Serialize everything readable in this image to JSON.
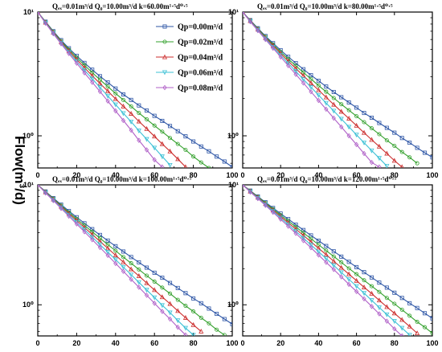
{
  "y_axis_label": "Flow(m³/d)",
  "chart_data": [
    {
      "type": "line",
      "title": "Qₑₓ=0.01m³/d Q₀=10.00m³/d k=60.00m¹·⁵d⁰·⁵",
      "xlim": [
        0,
        100
      ],
      "ylim": [
        0.55,
        10
      ],
      "yscale": "log",
      "x_ticks": [
        "0",
        "20",
        "40",
        "60",
        "80",
        "100"
      ],
      "y_ticks": [
        "10⁰",
        "10¹"
      ],
      "x_step": 4,
      "legend": "top-right",
      "series": [
        {
          "name": "Qp=0.00m³/d",
          "color": "#2e56a6",
          "marker": "square",
          "values": [
            10.0,
            8.36,
            7.0,
            5.93,
            5.1,
            4.43,
            3.88,
            3.42,
            3.03,
            2.7,
            2.41,
            2.16,
            1.95,
            1.76,
            1.6,
            1.45,
            1.32,
            1.2,
            1.09,
            0.99,
            0.9,
            0.82,
            0.75,
            0.68,
            0.62,
            0.56
          ]
        },
        {
          "name": "Qp=0.02m³/d",
          "color": "#33a02c",
          "marker": "circle",
          "values": [
            10.0,
            8.3,
            6.92,
            5.83,
            4.98,
            4.29,
            3.72,
            3.24,
            2.84,
            2.5,
            2.2,
            1.95,
            1.73,
            1.53,
            1.36,
            1.21,
            1.08,
            0.96,
            0.86,
            0.77,
            0.68,
            0.61,
            0.55
          ]
        },
        {
          "name": "Qp=0.04m³/d",
          "color": "#cc2e2e",
          "marker": "triangle",
          "values": [
            10.0,
            8.24,
            6.84,
            5.74,
            4.86,
            4.14,
            3.55,
            3.06,
            2.65,
            2.3,
            1.99,
            1.73,
            1.51,
            1.31,
            1.14,
            0.99,
            0.86,
            0.75,
            0.65,
            0.56
          ]
        },
        {
          "name": "Qp=0.06m³/d",
          "color": "#3ec1d6",
          "marker": "triangle-down",
          "values": [
            10.0,
            8.18,
            6.76,
            5.64,
            4.74,
            4.0,
            3.39,
            2.89,
            2.46,
            2.1,
            1.79,
            1.52,
            1.3,
            1.1,
            0.94,
            0.8,
            0.68,
            0.58
          ]
        },
        {
          "name": "Qp=0.08m³/d",
          "color": "#b061c8",
          "marker": "diamond",
          "values": [
            10.0,
            8.12,
            6.68,
            5.54,
            4.62,
            3.86,
            3.23,
            2.71,
            2.28,
            1.91,
            1.59,
            1.33,
            1.11,
            0.92,
            0.77,
            0.64,
            0.56
          ]
        }
      ]
    },
    {
      "type": "line",
      "title": "Qₑₓ=0.01m³/d Q₀=10.00m³/d k=80.00m¹·⁵d⁰·⁵",
      "xlim": [
        0,
        100
      ],
      "ylim": [
        0.55,
        10
      ],
      "yscale": "log",
      "x_ticks": [
        "0",
        "20",
        "40",
        "60",
        "80",
        "100"
      ],
      "y_ticks": [
        "10⁰",
        "10¹"
      ],
      "x_step": 4,
      "series": [
        {
          "name": "Qp=0.00m³/d",
          "color": "#2e56a6",
          "marker": "square",
          "values": [
            10.0,
            8.6,
            7.4,
            6.4,
            5.6,
            4.92,
            4.35,
            3.87,
            3.45,
            3.09,
            2.78,
            2.5,
            2.26,
            2.05,
            1.86,
            1.69,
            1.53,
            1.4,
            1.27,
            1.16,
            1.06,
            0.96,
            0.88,
            0.8,
            0.73,
            0.67
          ]
        },
        {
          "name": "Qp=0.02m³/d",
          "color": "#33a02c",
          "marker": "circle",
          "values": [
            10.0,
            8.54,
            7.32,
            6.3,
            5.47,
            4.77,
            4.18,
            3.68,
            3.25,
            2.88,
            2.55,
            2.27,
            2.02,
            1.8,
            1.61,
            1.44,
            1.29,
            1.15,
            1.03,
            0.92,
            0.83,
            0.74,
            0.67,
            0.6
          ]
        },
        {
          "name": "Qp=0.04m³/d",
          "color": "#cc2e2e",
          "marker": "triangle",
          "values": [
            10.0,
            8.48,
            7.24,
            6.2,
            5.35,
            4.63,
            4.02,
            3.5,
            3.06,
            2.67,
            2.34,
            2.05,
            1.79,
            1.57,
            1.38,
            1.21,
            1.06,
            0.93,
            0.82,
            0.72,
            0.63,
            0.56
          ]
        },
        {
          "name": "Qp=0.06m³/d",
          "color": "#3ec1d6",
          "marker": "triangle-down",
          "values": [
            10.0,
            8.42,
            7.16,
            6.1,
            5.22,
            4.48,
            3.85,
            3.32,
            2.86,
            2.47,
            2.13,
            1.84,
            1.59,
            1.37,
            1.18,
            1.02,
            0.88,
            0.76,
            0.66,
            0.57
          ]
        },
        {
          "name": "Qp=0.08m³/d",
          "color": "#b061c8",
          "marker": "diamond",
          "values": [
            10.0,
            8.36,
            7.08,
            6.0,
            5.1,
            4.34,
            3.69,
            3.14,
            2.67,
            2.27,
            1.93,
            1.64,
            1.39,
            1.18,
            1.0,
            0.85,
            0.72,
            0.61,
            0.56
          ]
        }
      ]
    },
    {
      "type": "line",
      "title": "Qₑₓ=0.01m³/d Q₀=10.00m³/d k=100.00m¹·⁵d⁰·⁵",
      "xlim": [
        0,
        100
      ],
      "ylim": [
        0.55,
        10
      ],
      "yscale": "log",
      "x_ticks": [
        "0",
        "20",
        "40",
        "60",
        "80",
        "100"
      ],
      "y_ticks": [
        "10⁰",
        "10¹"
      ],
      "x_step": 4,
      "series": [
        {
          "name": "Qp=0.00m³/d",
          "color": "#2e56a6",
          "marker": "square",
          "values": [
            10.0,
            8.8,
            7.75,
            6.84,
            6.05,
            5.37,
            4.78,
            4.27,
            3.82,
            3.43,
            3.08,
            2.78,
            2.5,
            2.26,
            2.04,
            1.85,
            1.68,
            1.52,
            1.38,
            1.25,
            1.13,
            1.03,
            0.93,
            0.84,
            0.76,
            0.69
          ]
        },
        {
          "name": "Qp=0.02m³/d",
          "color": "#33a02c",
          "marker": "circle",
          "values": [
            10.0,
            8.74,
            7.66,
            6.72,
            5.9,
            5.2,
            4.59,
            4.06,
            3.59,
            3.18,
            2.82,
            2.5,
            2.22,
            1.97,
            1.75,
            1.56,
            1.39,
            1.24,
            1.1,
            0.98,
            0.88,
            0.78,
            0.7,
            0.62,
            0.56
          ]
        },
        {
          "name": "Qp=0.04m³/d",
          "color": "#cc2e2e",
          "marker": "triangle",
          "values": [
            10.0,
            8.68,
            7.57,
            6.6,
            5.76,
            5.04,
            4.41,
            3.86,
            3.38,
            2.96,
            2.59,
            2.27,
            1.98,
            1.74,
            1.52,
            1.33,
            1.16,
            1.02,
            0.89,
            0.78,
            0.68,
            0.6
          ]
        },
        {
          "name": "Qp=0.06m³/d",
          "color": "#3ec1d6",
          "marker": "triangle-down",
          "values": [
            10.0,
            8.62,
            7.48,
            6.48,
            5.62,
            4.88,
            4.23,
            3.67,
            3.18,
            2.75,
            2.38,
            2.06,
            1.78,
            1.54,
            1.33,
            1.15,
            0.99,
            0.86,
            0.74,
            0.64,
            0.56
          ]
        },
        {
          "name": "Qp=0.08m³/d",
          "color": "#b061c8",
          "marker": "diamond",
          "values": [
            10.0,
            8.56,
            7.39,
            6.36,
            5.48,
            4.72,
            4.06,
            3.49,
            3.0,
            2.58,
            2.21,
            1.9,
            1.63,
            1.4,
            1.2,
            1.03,
            0.88,
            0.76,
            0.65,
            0.56
          ]
        }
      ]
    },
    {
      "type": "line",
      "title": "Qₑₓ=0.01m³/d Q₀=10.00m³/d k=120.00m¹·⁵d⁰·⁵",
      "xlim": [
        0,
        100
      ],
      "ylim": [
        0.55,
        10
      ],
      "yscale": "log",
      "x_ticks": [
        "0",
        "20",
        "40",
        "60",
        "80",
        "100"
      ],
      "y_ticks": [
        "10⁰",
        "10¹"
      ],
      "x_step": 4,
      "series": [
        {
          "name": "Qp=0.00m³/d",
          "color": "#2e56a6",
          "marker": "square",
          "values": [
            10.0,
            8.95,
            8.0,
            7.16,
            6.41,
            5.76,
            5.18,
            4.66,
            4.2,
            3.79,
            3.42,
            3.09,
            2.79,
            2.52,
            2.28,
            2.06,
            1.87,
            1.69,
            1.53,
            1.39,
            1.26,
            1.14,
            1.03,
            0.94,
            0.85,
            0.77
          ]
        },
        {
          "name": "Qp=0.02m³/d",
          "color": "#33a02c",
          "marker": "circle",
          "values": [
            10.0,
            8.89,
            7.92,
            7.05,
            6.28,
            5.6,
            5.0,
            4.46,
            3.98,
            3.55,
            3.17,
            2.83,
            2.53,
            2.26,
            2.01,
            1.8,
            1.6,
            1.43,
            1.28,
            1.14,
            1.02,
            0.91,
            0.81,
            0.72,
            0.65,
            0.58
          ]
        },
        {
          "name": "Qp=0.04m³/d",
          "color": "#cc2e2e",
          "marker": "triangle",
          "values": [
            10.0,
            8.83,
            7.84,
            6.94,
            6.15,
            5.45,
            4.83,
            4.28,
            3.79,
            3.35,
            2.96,
            2.62,
            2.31,
            2.04,
            1.8,
            1.59,
            1.4,
            1.24,
            1.09,
            0.96,
            0.85,
            0.75,
            0.66,
            0.58
          ]
        },
        {
          "name": "Qp=0.06m³/d",
          "color": "#3ec1d6",
          "marker": "triangle-down",
          "values": [
            10.0,
            8.77,
            7.76,
            6.84,
            6.03,
            5.31,
            4.67,
            4.1,
            3.6,
            3.16,
            2.77,
            2.43,
            2.13,
            1.86,
            1.63,
            1.43,
            1.25,
            1.09,
            0.95,
            0.83,
            0.73,
            0.64,
            0.56
          ]
        },
        {
          "name": "Qp=0.08m³/d",
          "color": "#b061c8",
          "marker": "diamond",
          "values": [
            10.0,
            8.71,
            7.68,
            6.74,
            5.9,
            5.17,
            4.52,
            3.94,
            3.43,
            2.99,
            2.6,
            2.26,
            1.97,
            1.71,
            1.48,
            1.29,
            1.12,
            0.97,
            0.84,
            0.73,
            0.63,
            0.55
          ]
        }
      ]
    }
  ]
}
